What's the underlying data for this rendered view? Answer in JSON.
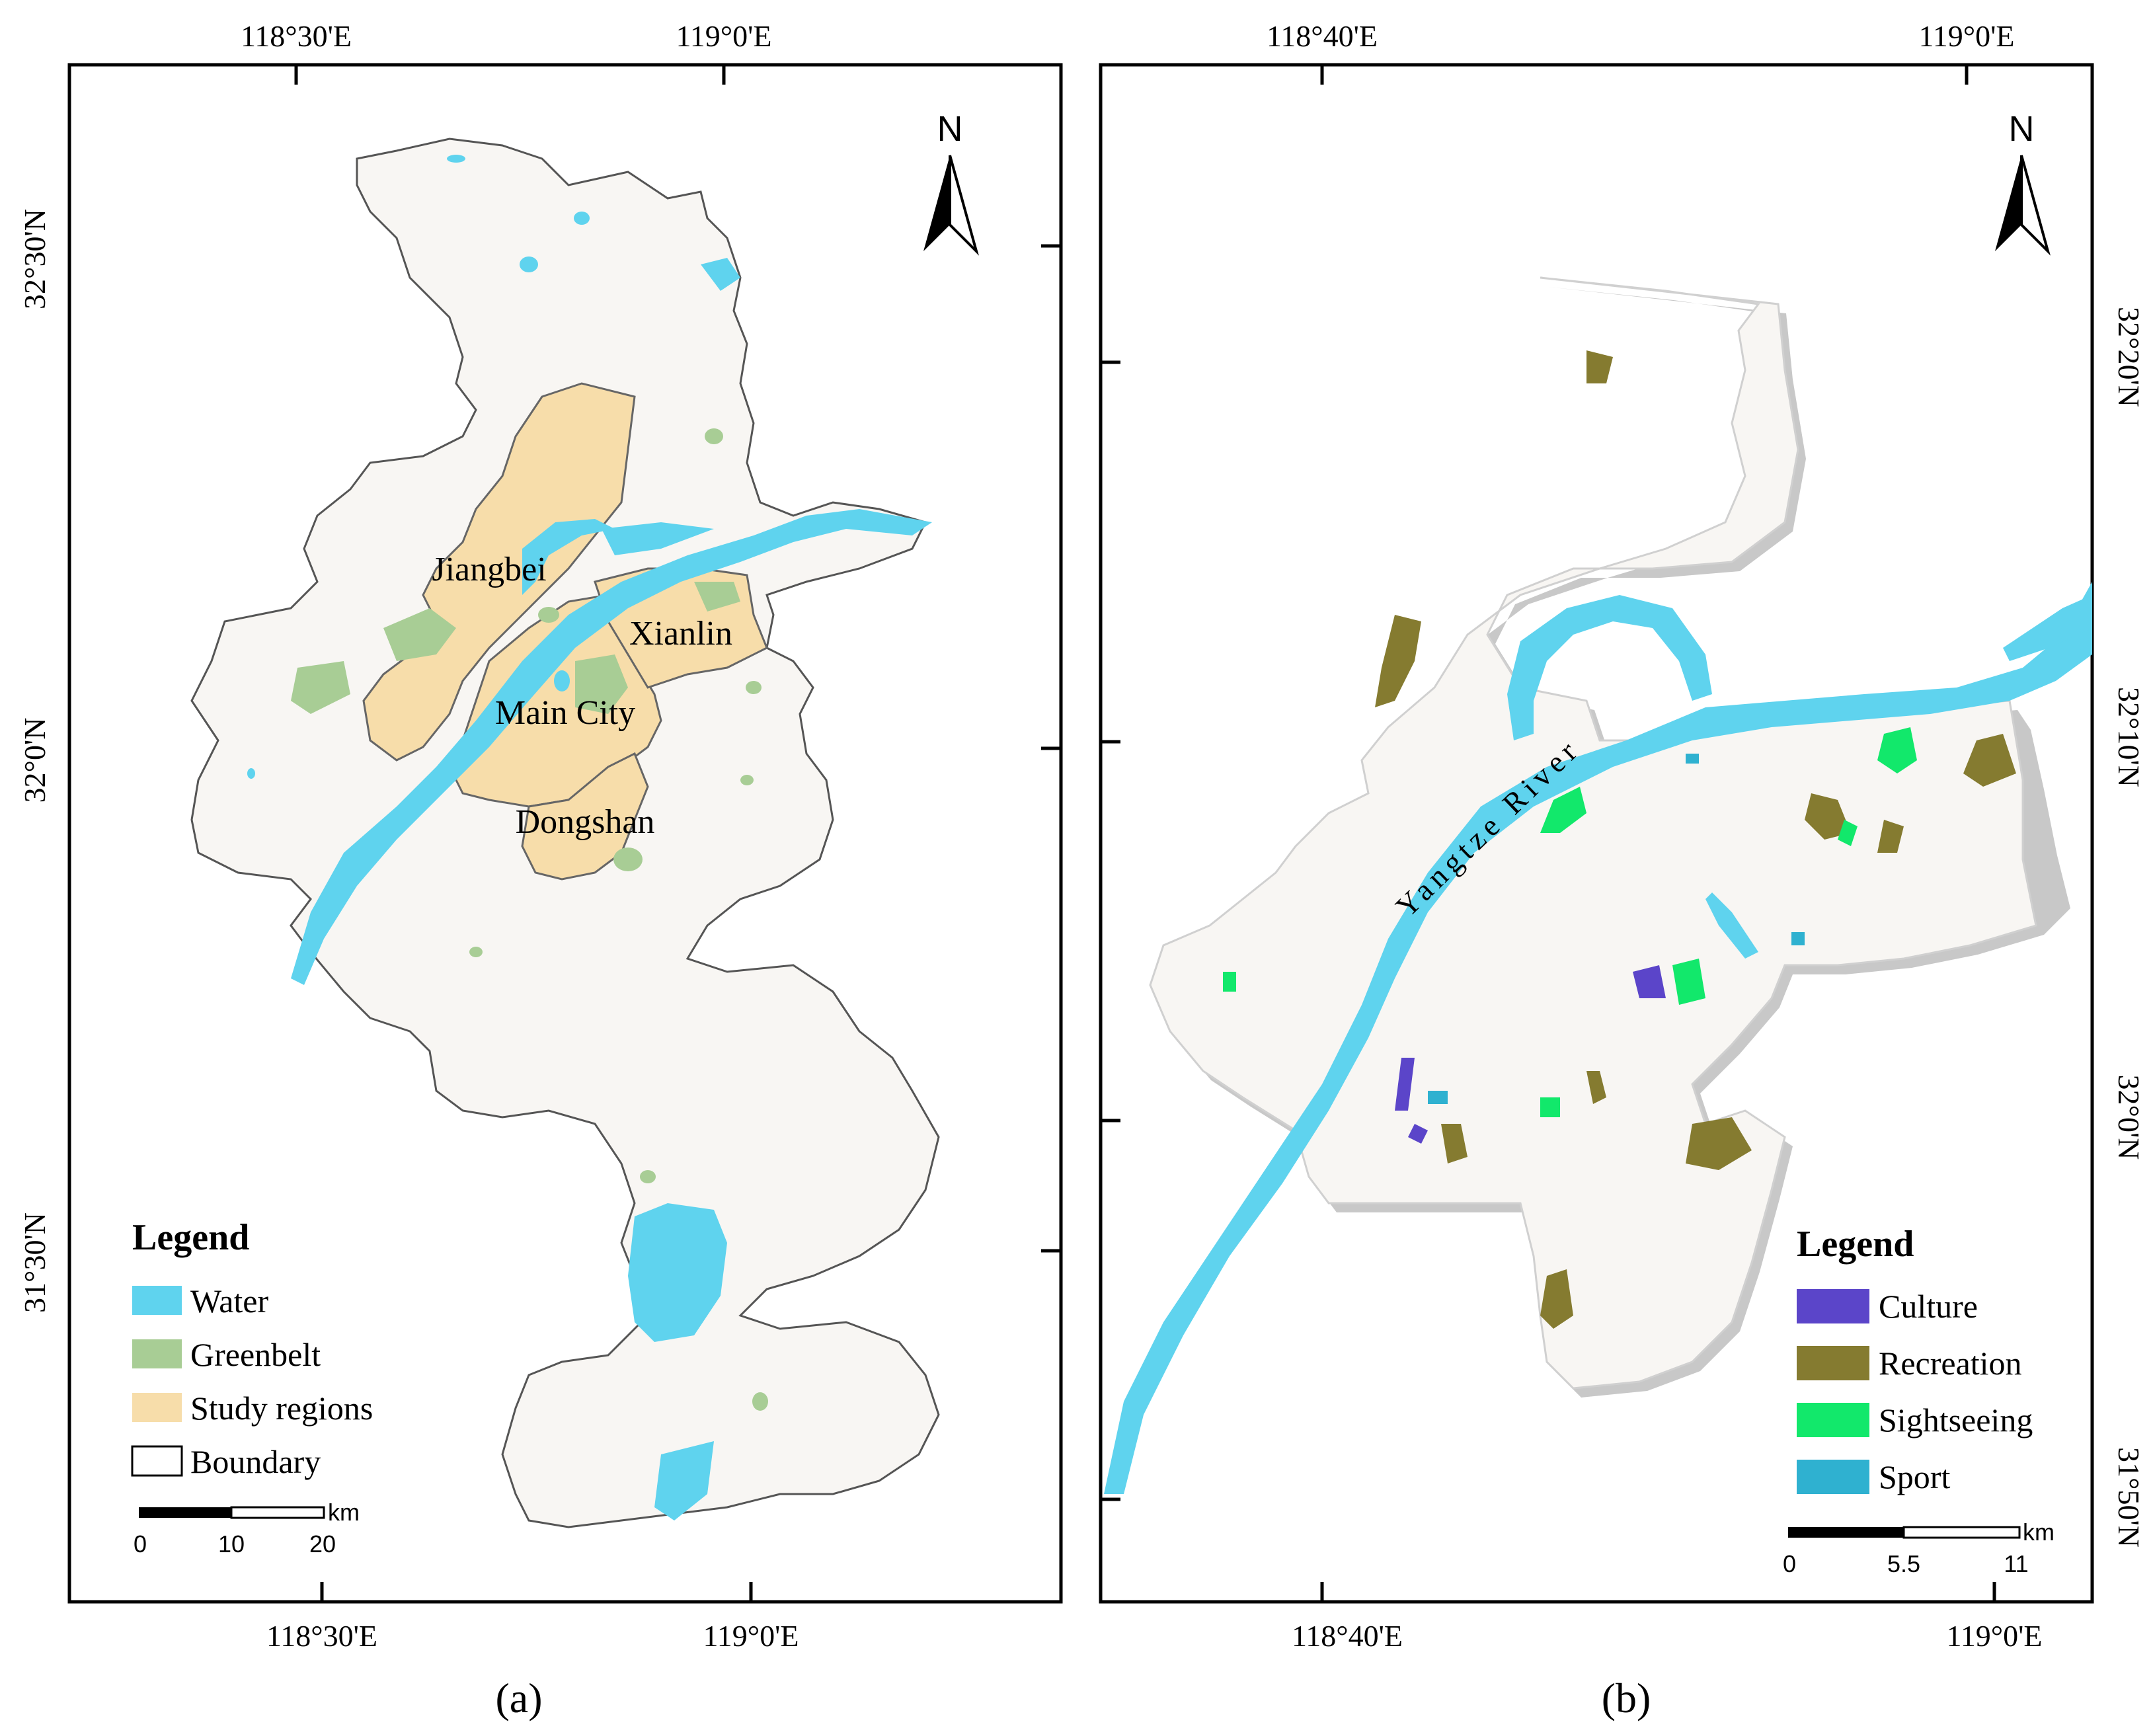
{
  "panel_a": {
    "caption": "(a)",
    "top_ticks": [
      "118°30'E",
      "119°0'E"
    ],
    "bottom_ticks": [
      "118°30'E",
      "119°0'E"
    ],
    "left_ticks": [
      "32°30'N",
      "32°0'N",
      "31°30'N"
    ],
    "north": "N",
    "places": [
      "Jiangbei",
      "Xianlin",
      "Main City",
      "Dongshan"
    ],
    "legend": {
      "title": "Legend",
      "items": [
        {
          "label": "Water",
          "color": "#5fd3ee"
        },
        {
          "label": "Greenbelt",
          "color": "#a8cd95"
        },
        {
          "label": "Study regions",
          "color": "#f7ddaa"
        },
        {
          "label": "Boundary",
          "color": "#ffffff"
        }
      ]
    },
    "scale": {
      "unit": "km",
      "labels": [
        "0",
        "10",
        "20"
      ]
    }
  },
  "panel_b": {
    "caption": "(b)",
    "top_ticks": [
      "118°40'E",
      "119°0'E"
    ],
    "bottom_ticks": [
      "118°40'E",
      "119°0'E"
    ],
    "right_ticks": [
      "32°20'N",
      "32°10'N",
      "32°0'N",
      "31°50'N"
    ],
    "north": "N",
    "river_label": "Yangtze River",
    "legend": {
      "title": "Legend",
      "items": [
        {
          "label": "Culture",
          "color": "#5b45c9"
        },
        {
          "label": "Recreation",
          "color": "#857b30"
        },
        {
          "label": "Sightseeing",
          "color": "#12e86b"
        },
        {
          "label": "Sport",
          "color": "#2fb1d0"
        }
      ]
    },
    "scale": {
      "unit": "km",
      "labels": [
        "0",
        "5.5",
        "11"
      ]
    }
  },
  "colors": {
    "land": "#f8f6f3",
    "water": "#5fd3ee",
    "greenbelt": "#a8cd95",
    "study": "#f7ddaa"
  }
}
